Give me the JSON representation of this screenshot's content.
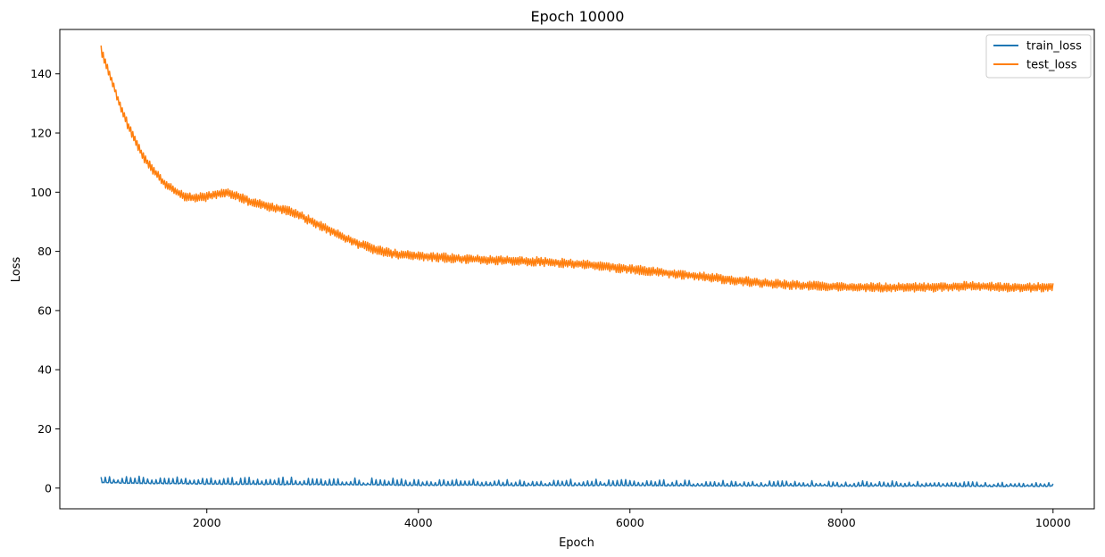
{
  "chart_data": {
    "type": "line",
    "title": "Epoch 10000",
    "xlabel": "Epoch",
    "ylabel": "Loss",
    "xlim": [
      610,
      10390
    ],
    "ylim": [
      -7,
      155
    ],
    "xticks": [
      2000,
      4000,
      6000,
      8000,
      10000
    ],
    "yticks": [
      0,
      20,
      40,
      60,
      80,
      100,
      120,
      140
    ],
    "grid": false,
    "legend": "top-right",
    "x_range": [
      1000,
      10000
    ],
    "series": [
      {
        "name": "train_loss",
        "color": "#1f77b4",
        "x": [
          1000,
          1500,
          2000,
          2500,
          3000,
          3500,
          4000,
          4500,
          5000,
          5500,
          6000,
          6500,
          7000,
          7500,
          8000,
          8500,
          9000,
          9500,
          10000
        ],
        "y": [
          1.8,
          1.6,
          1.4,
          1.3,
          1.2,
          1.1,
          1.0,
          1.0,
          0.9,
          0.9,
          0.9,
          0.8,
          0.8,
          0.8,
          0.7,
          0.7,
          0.7,
          0.6,
          0.6
        ]
      },
      {
        "name": "test_loss",
        "color": "#ff7f0e",
        "x": [
          1000,
          1100,
          1200,
          1300,
          1400,
          1500,
          1600,
          1700,
          1800,
          1900,
          2000,
          2100,
          2200,
          2300,
          2400,
          2600,
          2800,
          3000,
          3200,
          3400,
          3600,
          3800,
          4000,
          4400,
          4800,
          5200,
          5600,
          6000,
          6400,
          6800,
          7200,
          7600,
          8000,
          8400,
          8800,
          9200,
          9600,
          10000
        ],
        "y": [
          148,
          138,
          127,
          119,
          112,
          107,
          103,
          100.5,
          98.5,
          98,
          98.5,
          99.5,
          100,
          98.5,
          97,
          95,
          93.5,
          90,
          86.5,
          83,
          80.5,
          79,
          78.5,
          77.5,
          77,
          76.5,
          75.5,
          74,
          72.5,
          71,
          69.5,
          68.5,
          68,
          67.8,
          67.8,
          68.3,
          67.8,
          68
        ]
      }
    ]
  }
}
